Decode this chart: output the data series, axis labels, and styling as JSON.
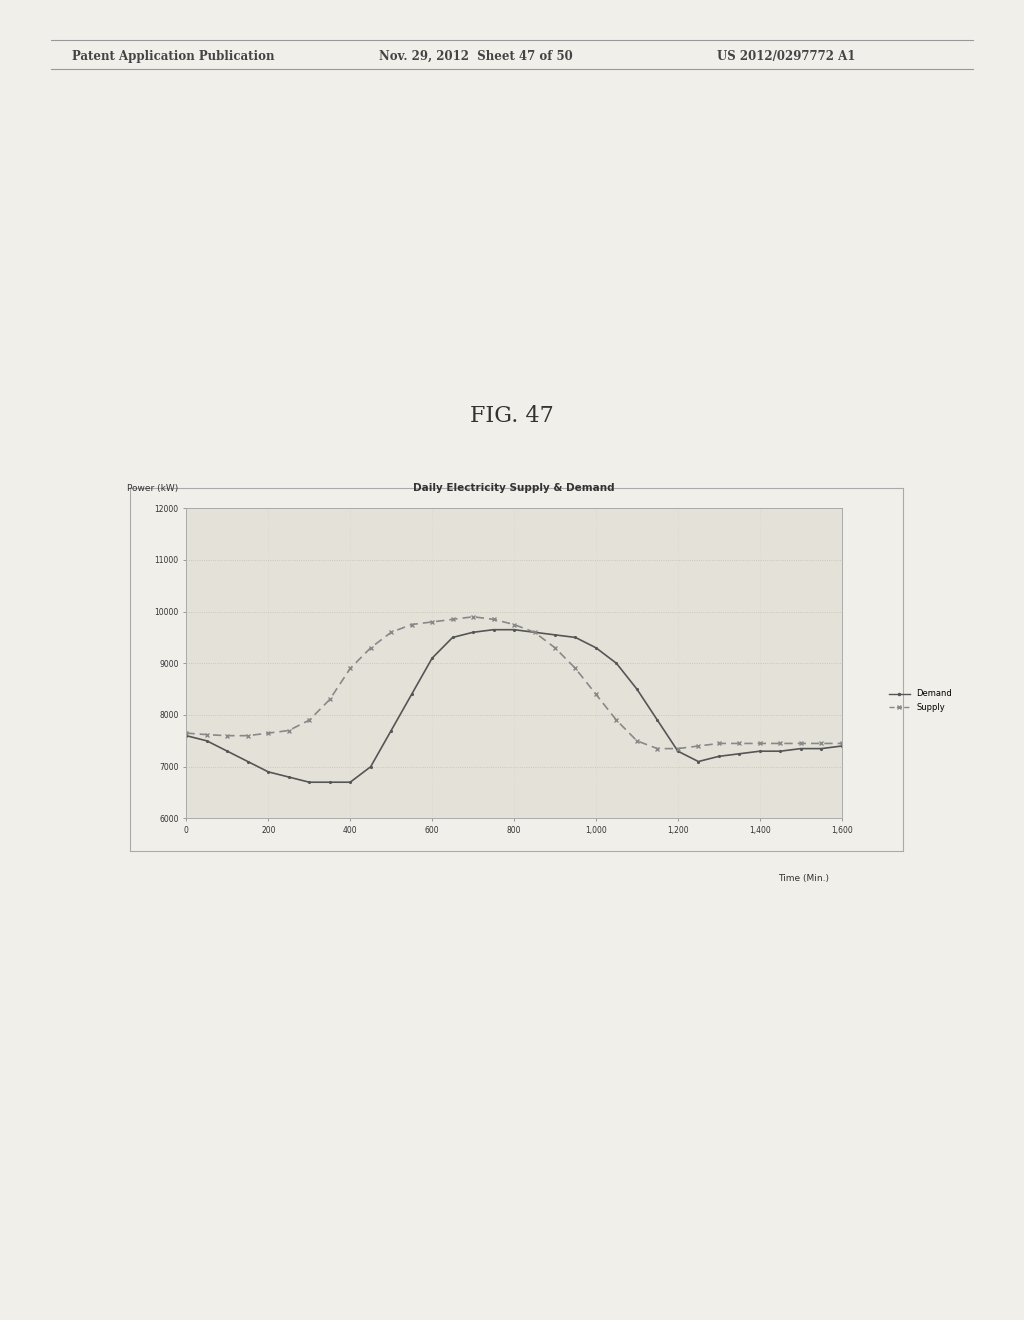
{
  "title": "Daily Electricity Supply & Demand",
  "ylabel": "Power (kW)",
  "xlabel": "Time (Min.)",
  "ylim": [
    6000,
    12000
  ],
  "xlim": [
    0,
    1600
  ],
  "yticks": [
    6000,
    7000,
    8000,
    9000,
    10000,
    11000,
    12000
  ],
  "xticks": [
    0,
    200,
    400,
    600,
    800,
    1000,
    1200,
    1400,
    1600
  ],
  "xtick_labels": [
    "0",
    "200",
    "400",
    "600",
    "800",
    "1,000",
    "1,200",
    "1,400",
    "1,600"
  ],
  "header_left": "Patent Application Publication",
  "header_mid": "Nov. 29, 2012  Sheet 47 of 50",
  "header_right": "US 2012/0297772 A1",
  "fig_label": "FIG. 47",
  "demand_color": "#555555",
  "supply_color": "#888888",
  "background_color": "#f0efea",
  "chart_bg": "#e4e2d8",
  "demand_x": [
    0,
    50,
    100,
    150,
    200,
    250,
    300,
    350,
    400,
    450,
    500,
    550,
    600,
    650,
    700,
    750,
    800,
    850,
    900,
    950,
    1000,
    1050,
    1100,
    1150,
    1200,
    1250,
    1300,
    1350,
    1400,
    1450,
    1500,
    1550,
    1600
  ],
  "demand_y": [
    7600,
    7500,
    7300,
    7100,
    6900,
    6800,
    6700,
    6700,
    6700,
    7000,
    7700,
    8400,
    9100,
    9500,
    9600,
    9650,
    9650,
    9600,
    9550,
    9500,
    9300,
    9000,
    8500,
    7900,
    7300,
    7100,
    7200,
    7250,
    7300,
    7300,
    7350,
    7350,
    7400
  ],
  "supply_x": [
    0,
    50,
    100,
    150,
    200,
    250,
    300,
    350,
    400,
    450,
    500,
    550,
    600,
    650,
    700,
    750,
    800,
    850,
    900,
    950,
    1000,
    1050,
    1100,
    1150,
    1200,
    1250,
    1300,
    1350,
    1400,
    1450,
    1500,
    1550,
    1600
  ],
  "supply_y": [
    7650,
    7620,
    7600,
    7600,
    7650,
    7700,
    7900,
    8300,
    8900,
    9300,
    9600,
    9750,
    9800,
    9850,
    9900,
    9850,
    9750,
    9600,
    9300,
    8900,
    8400,
    7900,
    7500,
    7350,
    7350,
    7400,
    7450,
    7450,
    7450,
    7450,
    7450,
    7450,
    7450
  ]
}
